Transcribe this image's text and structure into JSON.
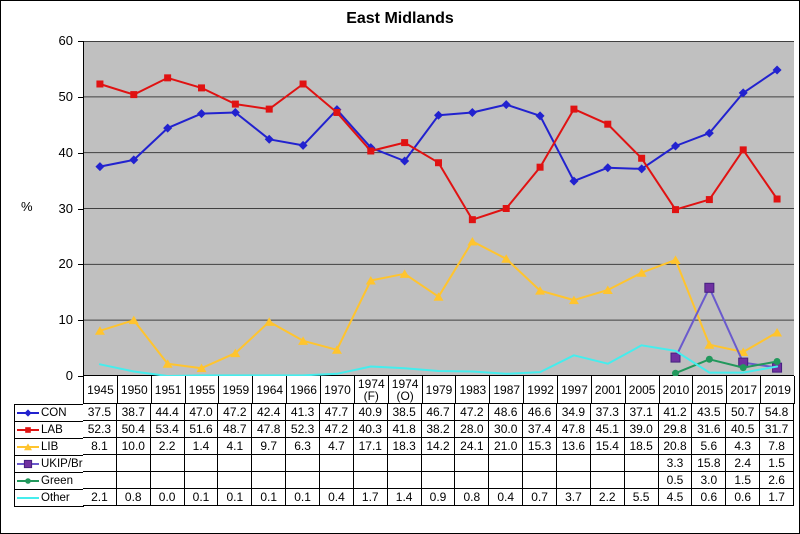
{
  "title": "East Midlands",
  "y_axis_label": "%",
  "chart_data": {
    "type": "line",
    "title": "East Midlands",
    "ylabel": "%",
    "ylim": [
      0,
      60
    ],
    "y_ticks": [
      0,
      10,
      20,
      30,
      40,
      50,
      60
    ],
    "grid": true,
    "plot_bg_color": "#C0C0C0",
    "gridline_color": "#404040",
    "legend_position": "table-left",
    "categories": [
      "1945",
      "1950",
      "1951",
      "1955",
      "1959",
      "1964",
      "1966",
      "1970",
      "1974 (F)",
      "1974 (O)",
      "1979",
      "1983",
      "1987",
      "1992",
      "1997",
      "2001",
      "2005",
      "2010",
      "2015",
      "2017",
      "2019"
    ],
    "category_display": [
      "1945",
      "1950",
      "1951",
      "1955",
      "1959",
      "1964",
      "1966",
      "1970",
      "1974\n(F)",
      "1974\n(O)",
      "1979",
      "1983",
      "1987",
      "1992",
      "1997",
      "2001",
      "2005",
      "2010",
      "2015",
      "2017",
      "2019"
    ],
    "series": [
      {
        "name": "CON",
        "color": "#2222CF",
        "marker": "diamond",
        "marker_color": "#2222CF",
        "values": [
          37.5,
          38.7,
          44.4,
          47.0,
          47.2,
          42.4,
          41.3,
          47.7,
          40.9,
          38.5,
          46.7,
          47.2,
          48.6,
          46.6,
          34.9,
          37.3,
          37.1,
          41.2,
          43.5,
          50.7,
          54.8
        ],
        "display": [
          "37.5",
          "38.7",
          "44.4",
          "47.0",
          "47.2",
          "42.4",
          "41.3",
          "47.7",
          "40.9",
          "38.5",
          "46.7",
          "47.2",
          "48.6",
          "46.6",
          "34.9",
          "37.3",
          "37.1",
          "41.2",
          "43.5",
          "50.7",
          "54.8"
        ]
      },
      {
        "name": "LAB",
        "color": "#E01212",
        "marker": "square",
        "marker_color": "#E01212",
        "values": [
          52.3,
          50.4,
          53.4,
          51.6,
          48.7,
          47.8,
          52.3,
          47.2,
          40.3,
          41.8,
          38.2,
          28.0,
          30.0,
          37.4,
          47.8,
          45.1,
          39.0,
          29.8,
          31.6,
          40.5,
          31.7
        ],
        "display": [
          "52.3",
          "50.4",
          "53.4",
          "51.6",
          "48.7",
          "47.8",
          "52.3",
          "47.2",
          "40.3",
          "41.8",
          "38.2",
          "28.0",
          "30.0",
          "37.4",
          "47.8",
          "45.1",
          "39.0",
          "29.8",
          "31.6",
          "40.5",
          "31.7"
        ]
      },
      {
        "name": "LIB",
        "color": "#FFC42E",
        "marker": "triangle",
        "marker_color": "#FFC42E",
        "values": [
          8.1,
          10.0,
          2.2,
          1.4,
          4.1,
          9.7,
          6.3,
          4.7,
          17.1,
          18.3,
          14.2,
          24.1,
          21.0,
          15.3,
          13.6,
          15.4,
          18.5,
          20.8,
          5.6,
          4.3,
          7.8
        ],
        "display": [
          "8.1",
          "10.0",
          "2.2",
          "1.4",
          "4.1",
          "9.7",
          "6.3",
          "4.7",
          "17.1",
          "18.3",
          "14.2",
          "24.1",
          "21.0",
          "15.3",
          "13.6",
          "15.4",
          "18.5",
          "20.8",
          "5.6",
          "4.3",
          "7.8"
        ]
      },
      {
        "name": "UKIP/Br",
        "color": "#6A5ACD",
        "marker": "square-lg",
        "marker_color": "#7030A0",
        "values": [
          null,
          null,
          null,
          null,
          null,
          null,
          null,
          null,
          null,
          null,
          null,
          null,
          null,
          null,
          null,
          null,
          null,
          3.3,
          15.8,
          2.4,
          1.5
        ],
        "display": [
          "",
          "",
          "",
          "",
          "",
          "",
          "",
          "",
          "",
          "",
          "",
          "",
          "",
          "",
          "",
          "",
          "",
          "3.3",
          "15.8",
          "2.4",
          "1.5"
        ]
      },
      {
        "name": "Green",
        "color": "#22985C",
        "marker": "circle",
        "marker_color": "#22985C",
        "values": [
          null,
          null,
          null,
          null,
          null,
          null,
          null,
          null,
          null,
          null,
          null,
          null,
          null,
          null,
          null,
          null,
          null,
          0.5,
          3.0,
          1.5,
          2.6
        ],
        "display": [
          "",
          "",
          "",
          "",
          "",
          "",
          "",
          "",
          "",
          "",
          "",
          "",
          "",
          "",
          "",
          "",
          "",
          "0.5",
          "3.0",
          "1.5",
          "2.6"
        ]
      },
      {
        "name": "Other",
        "color": "#45EDED",
        "marker": "none",
        "marker_color": "#45EDED",
        "values": [
          2.1,
          0.8,
          0.0,
          0.1,
          0.1,
          0.1,
          0.1,
          0.4,
          1.7,
          1.4,
          0.9,
          0.8,
          0.4,
          0.7,
          3.7,
          2.2,
          5.5,
          4.5,
          0.6,
          0.6,
          1.7
        ],
        "display": [
          "2.1",
          "0.8",
          "0.0",
          "0.1",
          "0.1",
          "0.1",
          "0.1",
          "0.4",
          "1.7",
          "1.4",
          "0.9",
          "0.8",
          "0.4",
          "0.7",
          "3.7",
          "2.2",
          "5.5",
          "4.5",
          "0.6",
          "0.6",
          "1.7"
        ]
      }
    ]
  }
}
